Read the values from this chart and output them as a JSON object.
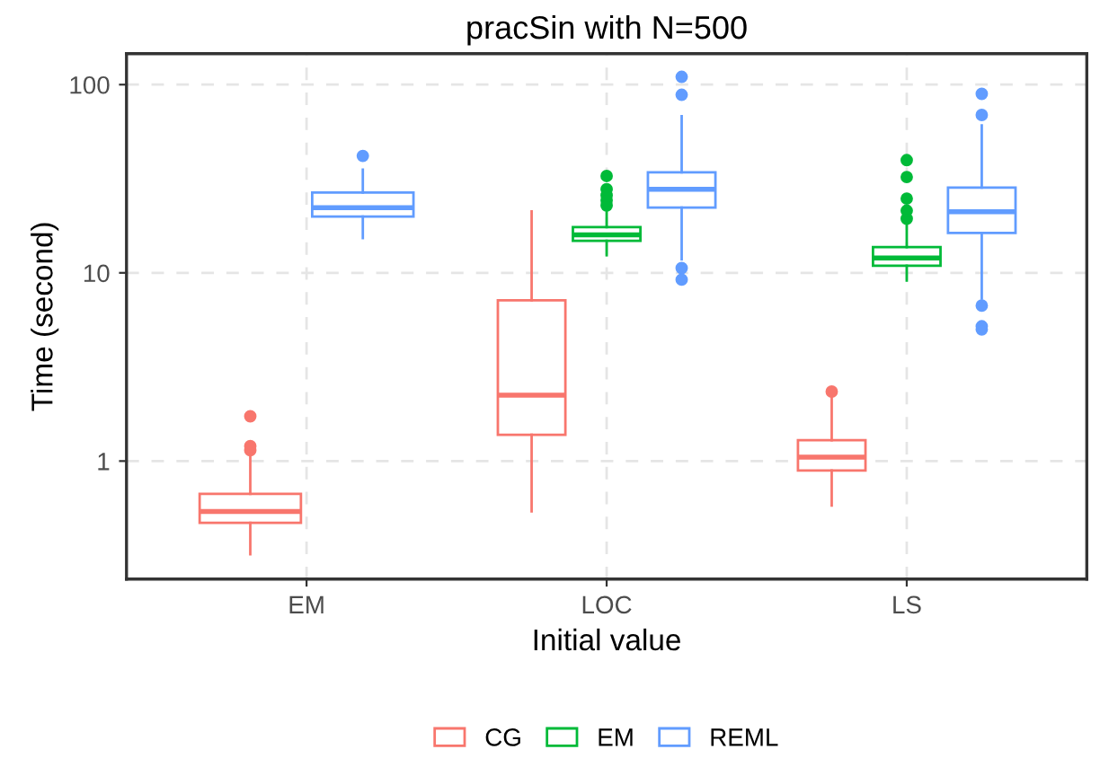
{
  "chart_data": {
    "type": "box",
    "title": "pracSin with N=500",
    "xlabel": "Initial value",
    "ylabel": "Time (second)",
    "categories": [
      "EM",
      "LOC",
      "LS"
    ],
    "log": true,
    "ylim": [
      0.236,
      146
    ],
    "yticks": [
      1,
      10,
      100
    ],
    "grid": true,
    "legend": "bottom",
    "series": [
      {
        "name": "CG",
        "color": "#f8766d",
        "boxes": [
          {
            "low": 0.32,
            "q1": 0.47,
            "median": 0.54,
            "q3": 0.67,
            "high": 1.05,
            "outliers": [
              1.14,
              1.2,
              1.73
            ]
          },
          {
            "low": 0.54,
            "q1": 1.38,
            "median": 2.24,
            "q3": 7.15,
            "high": 21.2
          },
          {
            "low": 0.58,
            "q1": 0.89,
            "median": 1.05,
            "q3": 1.29,
            "high": 2.21,
            "outliers": [
              2.34
            ]
          }
        ]
      },
      {
        "name": "EM",
        "color": "#00ba38",
        "boxes": [
          null,
          {
            "low": 12.4,
            "q1": 14.8,
            "median": 15.9,
            "q3": 17.5,
            "high": 21.4,
            "outliers": [
              22.8,
              24.3,
              25.8,
              27.8,
              32.7
            ]
          },
          {
            "low": 9.1,
            "q1": 10.9,
            "median": 12.0,
            "q3": 13.7,
            "high": 17.8,
            "outliers": [
              19.4,
              21.4,
              24.8,
              32.3,
              39.7
            ]
          }
        ]
      },
      {
        "name": "REML",
        "color": "#619cff",
        "boxes": [
          {
            "low": 15.3,
            "q1": 19.9,
            "median": 22.2,
            "q3": 26.7,
            "high": 35.3,
            "outliers": [
              41.8
            ]
          },
          {
            "low": 11.8,
            "q1": 22.2,
            "median": 27.8,
            "q3": 34.2,
            "high": 67.9,
            "outliers": [
              88.3,
              110,
              10.6,
              9.2
            ]
          },
          {
            "low": 7.3,
            "q1": 16.3,
            "median": 21.1,
            "q3": 28.4,
            "high": 60.7,
            "outliers": [
              69,
              89.3,
              6.7,
              5.2,
              5.0
            ]
          }
        ]
      }
    ]
  }
}
